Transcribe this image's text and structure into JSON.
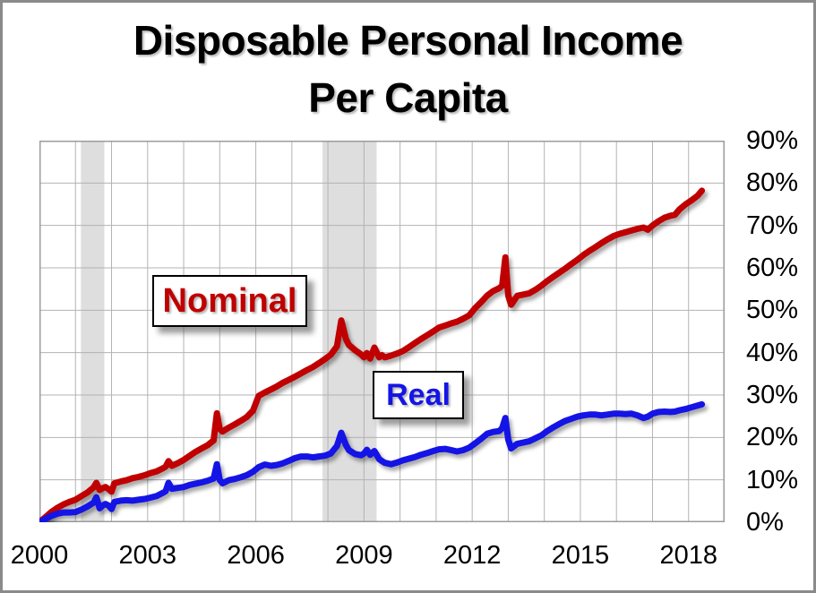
{
  "chart": {
    "title_line1": "Disposable Personal Income",
    "title_line2": "Per Capita",
    "colors": {
      "nominal": "#C00000",
      "real": "#1414E6",
      "gridline": "#B3B3B3",
      "plot_border": "#9C9C9C",
      "recession_band": "#DEDEDE",
      "outer_border": "#8A8A8A",
      "background": "#FFFFFF"
    }
  },
  "chart_data": {
    "type": "line",
    "title": "Disposable Personal Income Per Capita",
    "legend_position": "inline-boxed-labels",
    "grid": "on",
    "x_axis": {
      "range": [
        2000,
        2019
      ],
      "gridline_every_years": 1,
      "tick_years": [
        2000,
        2003,
        2006,
        2009,
        2012,
        2015,
        2018
      ]
    },
    "y_axis": {
      "range_pct": [
        0,
        90
      ],
      "gridline_every_pct": 10,
      "position": "right",
      "tick_values": [
        0,
        10,
        20,
        30,
        40,
        50,
        60,
        70,
        80,
        90
      ],
      "tick_labels": [
        "0%",
        "10%",
        "20%",
        "30%",
        "40%",
        "50%",
        "60%",
        "70%",
        "80%",
        "90%"
      ]
    },
    "recession_bands": [
      {
        "start": 2001.15,
        "end": 2001.8
      },
      {
        "start": 2007.85,
        "end": 2009.35
      }
    ],
    "annotations": [
      {
        "text": "Nominal",
        "color": "#C00000"
      },
      {
        "text": "Real",
        "color": "#1414E6"
      }
    ],
    "series": [
      {
        "name": "Nominal",
        "color": "#C00000",
        "points": [
          [
            2000.0,
            0
          ],
          [
            2000.17,
            1.2
          ],
          [
            2000.33,
            2.4
          ],
          [
            2000.5,
            3.4
          ],
          [
            2000.67,
            4.2
          ],
          [
            2000.83,
            4.8
          ],
          [
            2001.0,
            5.3
          ],
          [
            2001.17,
            6.2
          ],
          [
            2001.33,
            7.0
          ],
          [
            2001.5,
            8.2
          ],
          [
            2001.58,
            9.3
          ],
          [
            2001.67,
            7.6
          ],
          [
            2001.75,
            8.0
          ],
          [
            2001.83,
            8.3
          ],
          [
            2001.92,
            7.8
          ],
          [
            2002.0,
            7.2
          ],
          [
            2002.08,
            9.2
          ],
          [
            2002.25,
            9.6
          ],
          [
            2002.42,
            9.9
          ],
          [
            2002.58,
            10.4
          ],
          [
            2002.75,
            10.7
          ],
          [
            2002.92,
            11.1
          ],
          [
            2003.08,
            11.6
          ],
          [
            2003.25,
            12.0
          ],
          [
            2003.42,
            12.7
          ],
          [
            2003.5,
            13.1
          ],
          [
            2003.58,
            14.4
          ],
          [
            2003.67,
            13.3
          ],
          [
            2003.83,
            13.9
          ],
          [
            2004.0,
            14.7
          ],
          [
            2004.17,
            15.7
          ],
          [
            2004.33,
            16.6
          ],
          [
            2004.5,
            17.4
          ],
          [
            2004.67,
            18.2
          ],
          [
            2004.83,
            19.3
          ],
          [
            2004.92,
            25.7
          ],
          [
            2005.0,
            22.0
          ],
          [
            2005.08,
            21.4
          ],
          [
            2005.25,
            22.3
          ],
          [
            2005.42,
            23.1
          ],
          [
            2005.58,
            23.9
          ],
          [
            2005.75,
            24.8
          ],
          [
            2005.92,
            26.3
          ],
          [
            2006.08,
            29.8
          ],
          [
            2006.25,
            30.6
          ],
          [
            2006.42,
            31.3
          ],
          [
            2006.58,
            32.0
          ],
          [
            2006.75,
            32.9
          ],
          [
            2006.92,
            33.6
          ],
          [
            2007.08,
            34.3
          ],
          [
            2007.25,
            35.1
          ],
          [
            2007.42,
            35.9
          ],
          [
            2007.58,
            36.6
          ],
          [
            2007.75,
            37.5
          ],
          [
            2007.92,
            38.5
          ],
          [
            2008.08,
            39.5
          ],
          [
            2008.25,
            41.5
          ],
          [
            2008.37,
            47.6
          ],
          [
            2008.5,
            43.2
          ],
          [
            2008.58,
            41.8
          ],
          [
            2008.75,
            40.6
          ],
          [
            2008.92,
            39.6
          ],
          [
            2009.0,
            38.9
          ],
          [
            2009.08,
            39.9
          ],
          [
            2009.17,
            38.6
          ],
          [
            2009.29,
            41.2
          ],
          [
            2009.42,
            38.9
          ],
          [
            2009.5,
            39.4
          ],
          [
            2009.58,
            38.9
          ],
          [
            2009.75,
            39.3
          ],
          [
            2009.92,
            39.8
          ],
          [
            2010.08,
            40.4
          ],
          [
            2010.25,
            41.3
          ],
          [
            2010.42,
            42.3
          ],
          [
            2010.58,
            43.2
          ],
          [
            2010.75,
            44.1
          ],
          [
            2010.92,
            45.0
          ],
          [
            2011.08,
            45.9
          ],
          [
            2011.25,
            46.4
          ],
          [
            2011.42,
            46.9
          ],
          [
            2011.58,
            47.3
          ],
          [
            2011.75,
            48.0
          ],
          [
            2011.92,
            48.8
          ],
          [
            2012.08,
            50.5
          ],
          [
            2012.25,
            51.9
          ],
          [
            2012.42,
            53.5
          ],
          [
            2012.58,
            54.5
          ],
          [
            2012.75,
            55.2
          ],
          [
            2012.83,
            55.8
          ],
          [
            2012.92,
            62.5
          ],
          [
            2013.0,
            53.5
          ],
          [
            2013.08,
            51.3
          ],
          [
            2013.25,
            53.4
          ],
          [
            2013.42,
            53.7
          ],
          [
            2013.58,
            54.0
          ],
          [
            2013.75,
            54.8
          ],
          [
            2013.92,
            55.8
          ],
          [
            2014.08,
            56.9
          ],
          [
            2014.25,
            57.9
          ],
          [
            2014.42,
            58.9
          ],
          [
            2014.58,
            59.8
          ],
          [
            2014.75,
            60.9
          ],
          [
            2014.92,
            61.9
          ],
          [
            2015.08,
            63.0
          ],
          [
            2015.25,
            64.0
          ],
          [
            2015.42,
            64.9
          ],
          [
            2015.58,
            65.8
          ],
          [
            2015.75,
            66.7
          ],
          [
            2015.92,
            67.5
          ],
          [
            2016.08,
            68.0
          ],
          [
            2016.25,
            68.4
          ],
          [
            2016.42,
            68.8
          ],
          [
            2016.58,
            69.2
          ],
          [
            2016.75,
            69.5
          ],
          [
            2016.87,
            69.0
          ],
          [
            2017.0,
            70.0
          ],
          [
            2017.17,
            71.0
          ],
          [
            2017.33,
            71.8
          ],
          [
            2017.5,
            72.3
          ],
          [
            2017.62,
            72.5
          ],
          [
            2017.75,
            73.8
          ],
          [
            2017.92,
            75.0
          ],
          [
            2018.08,
            75.9
          ],
          [
            2018.25,
            77.0
          ],
          [
            2018.37,
            78.2
          ]
        ]
      },
      {
        "name": "Real",
        "color": "#1414E6",
        "points": [
          [
            2000.0,
            0
          ],
          [
            2000.17,
            0.8
          ],
          [
            2000.33,
            1.5
          ],
          [
            2000.5,
            2.0
          ],
          [
            2000.67,
            2.3
          ],
          [
            2000.83,
            2.3
          ],
          [
            2001.0,
            2.4
          ],
          [
            2001.17,
            3.0
          ],
          [
            2001.33,
            3.7
          ],
          [
            2001.5,
            4.6
          ],
          [
            2001.58,
            5.9
          ],
          [
            2001.67,
            3.3
          ],
          [
            2001.75,
            3.9
          ],
          [
            2001.83,
            4.3
          ],
          [
            2001.92,
            3.9
          ],
          [
            2002.0,
            3.1
          ],
          [
            2002.08,
            4.8
          ],
          [
            2002.25,
            5.1
          ],
          [
            2002.42,
            5.2
          ],
          [
            2002.58,
            5.1
          ],
          [
            2002.75,
            5.3
          ],
          [
            2002.92,
            5.5
          ],
          [
            2003.08,
            5.8
          ],
          [
            2003.25,
            6.2
          ],
          [
            2003.42,
            6.9
          ],
          [
            2003.5,
            7.3
          ],
          [
            2003.58,
            9.3
          ],
          [
            2003.67,
            7.9
          ],
          [
            2003.83,
            8.1
          ],
          [
            2004.0,
            8.3
          ],
          [
            2004.17,
            8.8
          ],
          [
            2004.33,
            9.1
          ],
          [
            2004.5,
            9.4
          ],
          [
            2004.67,
            9.8
          ],
          [
            2004.83,
            10.3
          ],
          [
            2004.92,
            13.7
          ],
          [
            2005.0,
            10.0
          ],
          [
            2005.08,
            9.2
          ],
          [
            2005.25,
            9.9
          ],
          [
            2005.42,
            10.2
          ],
          [
            2005.58,
            10.6
          ],
          [
            2005.75,
            11.1
          ],
          [
            2005.92,
            11.9
          ],
          [
            2006.08,
            13.0
          ],
          [
            2006.25,
            13.6
          ],
          [
            2006.42,
            13.3
          ],
          [
            2006.58,
            13.5
          ],
          [
            2006.75,
            13.9
          ],
          [
            2006.92,
            14.5
          ],
          [
            2007.08,
            15.1
          ],
          [
            2007.25,
            15.5
          ],
          [
            2007.42,
            15.5
          ],
          [
            2007.58,
            15.3
          ],
          [
            2007.75,
            15.5
          ],
          [
            2007.92,
            15.7
          ],
          [
            2008.08,
            16.2
          ],
          [
            2008.25,
            18.0
          ],
          [
            2008.37,
            21.1
          ],
          [
            2008.5,
            18.2
          ],
          [
            2008.58,
            17.0
          ],
          [
            2008.75,
            16.1
          ],
          [
            2008.92,
            15.8
          ],
          [
            2009.0,
            16.2
          ],
          [
            2009.08,
            17.1
          ],
          [
            2009.17,
            15.9
          ],
          [
            2009.29,
            16.8
          ],
          [
            2009.42,
            14.9
          ],
          [
            2009.5,
            14.4
          ],
          [
            2009.58,
            14.0
          ],
          [
            2009.75,
            13.7
          ],
          [
            2009.92,
            14.1
          ],
          [
            2010.08,
            14.6
          ],
          [
            2010.25,
            15.0
          ],
          [
            2010.42,
            15.4
          ],
          [
            2010.58,
            15.9
          ],
          [
            2010.75,
            16.3
          ],
          [
            2010.92,
            16.8
          ],
          [
            2011.08,
            17.2
          ],
          [
            2011.25,
            17.3
          ],
          [
            2011.42,
            17.0
          ],
          [
            2011.58,
            16.7
          ],
          [
            2011.75,
            17.0
          ],
          [
            2011.92,
            17.6
          ],
          [
            2012.08,
            18.6
          ],
          [
            2012.25,
            19.7
          ],
          [
            2012.42,
            20.9
          ],
          [
            2012.58,
            21.3
          ],
          [
            2012.75,
            21.5
          ],
          [
            2012.83,
            22.2
          ],
          [
            2012.92,
            24.6
          ],
          [
            2013.0,
            19.5
          ],
          [
            2013.08,
            17.4
          ],
          [
            2013.25,
            18.5
          ],
          [
            2013.42,
            18.8
          ],
          [
            2013.58,
            19.1
          ],
          [
            2013.75,
            19.8
          ],
          [
            2013.92,
            20.5
          ],
          [
            2014.08,
            21.5
          ],
          [
            2014.25,
            22.4
          ],
          [
            2014.42,
            23.2
          ],
          [
            2014.58,
            23.9
          ],
          [
            2014.75,
            24.4
          ],
          [
            2014.92,
            24.9
          ],
          [
            2015.08,
            25.2
          ],
          [
            2015.25,
            25.4
          ],
          [
            2015.42,
            25.4
          ],
          [
            2015.58,
            25.2
          ],
          [
            2015.75,
            25.4
          ],
          [
            2015.92,
            25.6
          ],
          [
            2016.08,
            25.6
          ],
          [
            2016.25,
            25.5
          ],
          [
            2016.42,
            25.6
          ],
          [
            2016.58,
            25.2
          ],
          [
            2016.75,
            24.6
          ],
          [
            2016.87,
            24.9
          ],
          [
            2017.0,
            25.6
          ],
          [
            2017.17,
            26.0
          ],
          [
            2017.33,
            26.1
          ],
          [
            2017.5,
            26.0
          ],
          [
            2017.62,
            26.1
          ],
          [
            2017.75,
            26.4
          ],
          [
            2017.92,
            26.7
          ],
          [
            2018.08,
            27.1
          ],
          [
            2018.25,
            27.5
          ],
          [
            2018.37,
            27.8
          ]
        ]
      }
    ]
  }
}
